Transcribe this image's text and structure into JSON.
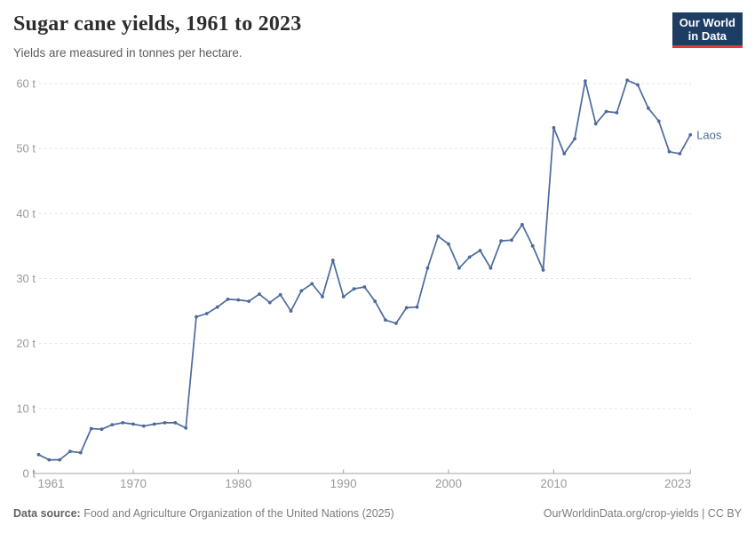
{
  "header": {
    "title": "Sugar cane yields, 1961 to 2023",
    "subtitle": "Yields are measured in tonnes per hectare.",
    "logo_line1": "Our World",
    "logo_line2": "in Data"
  },
  "chart_data": {
    "type": "line",
    "title": "Sugar cane yields, 1961 to 2023",
    "subtitle": "Yields are measured in tonnes per hectare.",
    "unit": "tonnes per hectare",
    "xlim": [
      1961,
      2023
    ],
    "ylim": [
      0,
      62
    ],
    "x_ticks": [
      1961,
      1970,
      1980,
      1990,
      2000,
      2010,
      2023
    ],
    "y_ticks": [
      0,
      10,
      20,
      30,
      40,
      50,
      60
    ],
    "y_tick_suffix": " t",
    "grid": "horizontal-dashed",
    "legend_position": "end-of-line",
    "series": [
      {
        "name": "Laos",
        "color": "#4C6A9C",
        "x": [
          1961,
          1962,
          1963,
          1964,
          1965,
          1966,
          1967,
          1968,
          1969,
          1970,
          1971,
          1972,
          1973,
          1974,
          1975,
          1976,
          1977,
          1978,
          1979,
          1980,
          1981,
          1982,
          1983,
          1984,
          1985,
          1986,
          1987,
          1988,
          1989,
          1990,
          1991,
          1992,
          1993,
          1994,
          1995,
          1996,
          1997,
          1998,
          1999,
          2000,
          2001,
          2002,
          2003,
          2004,
          2005,
          2006,
          2007,
          2008,
          2009,
          2010,
          2011,
          2012,
          2013,
          2014,
          2015,
          2016,
          2017,
          2018,
          2019,
          2020,
          2021,
          2022,
          2023
        ],
        "values": [
          2.9,
          2.1,
          2.1,
          3.4,
          3.2,
          6.9,
          6.8,
          7.5,
          7.8,
          7.6,
          7.3,
          7.6,
          7.8,
          7.8,
          7.0,
          24.1,
          24.6,
          25.6,
          26.8,
          26.7,
          26.5,
          27.6,
          26.3,
          27.5,
          25.0,
          28.1,
          29.2,
          27.2,
          32.8,
          27.2,
          28.4,
          28.7,
          26.5,
          23.6,
          23.1,
          25.5,
          25.6,
          31.6,
          36.5,
          35.3,
          31.6,
          33.3,
          34.3,
          31.6,
          35.8,
          35.9,
          38.3,
          35.0,
          31.3,
          53.2,
          49.2,
          51.5,
          60.4,
          53.8,
          55.7,
          55.5,
          60.5,
          59.8,
          56.2,
          54.2,
          49.5,
          49.2,
          52.1
        ]
      }
    ]
  },
  "footer": {
    "source_label": "Data source:",
    "source_text": " Food and Agriculture Organization of the United Nations (2025)",
    "link_text": "OurWorldinData.org/crop-yields",
    "separator": " | ",
    "license": "CC BY"
  },
  "colors": {
    "line": "#4C6A9C",
    "grid": "#e0e0e0",
    "axis": "#a3a3a3",
    "axis_text": "#9a9a9a",
    "logo_bg": "#1d3d63",
    "logo_accent": "#e0383b"
  }
}
